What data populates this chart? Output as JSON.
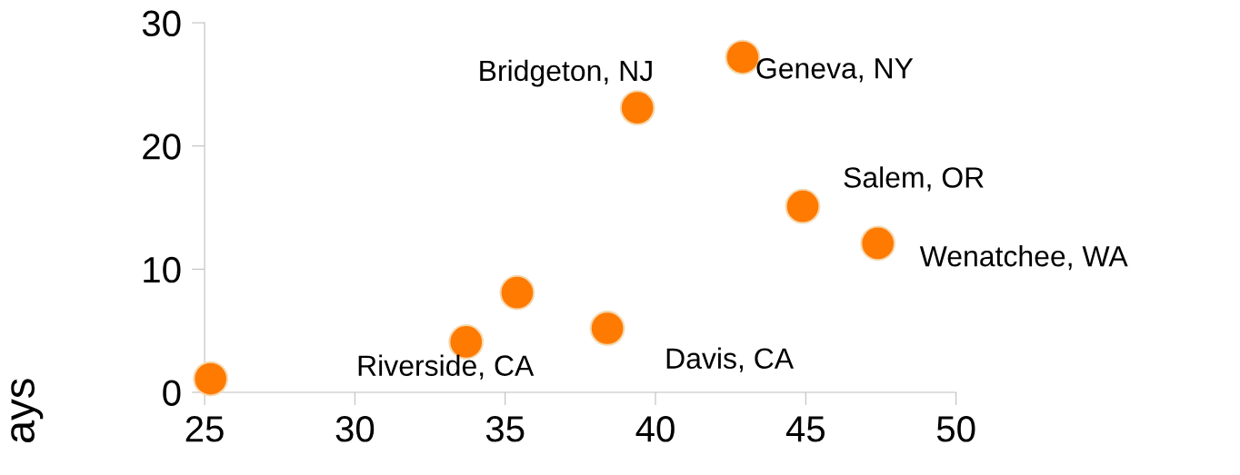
{
  "chart_data": {
    "type": "scatter",
    "ylabel": "ays",
    "x": [
      25.2,
      33.7,
      35.4,
      38.4,
      39.4,
      42.9,
      44.9,
      47.4
    ],
    "values": [
      1.1,
      4.1,
      8.1,
      5.2,
      23.1,
      27.2,
      15.1,
      12.1
    ],
    "color": "#ff7a00",
    "marker": "circle",
    "xlim": [
      25,
      50
    ],
    "xticks": [
      25,
      30,
      35,
      40,
      45,
      50
    ],
    "ylim": [
      0,
      30
    ],
    "yticks": [
      0,
      10,
      20,
      30
    ],
    "grid": false,
    "annotations": [
      {
        "text": "Bridgeton, NJ",
        "x": 39.4,
        "y": 23.1
      },
      {
        "text": "Geneva, NY",
        "x": 42.9,
        "y": 27.2
      },
      {
        "text": "Salem, OR",
        "x": 44.9,
        "y": 15.1
      },
      {
        "text": "Wenatchee, WA",
        "x": 47.4,
        "y": 12.1
      },
      {
        "text": "Riverside, CA",
        "x": 33.7,
        "y": 4.1
      },
      {
        "text": "Davis, CA",
        "x": 38.4,
        "y": 5.2
      }
    ]
  }
}
